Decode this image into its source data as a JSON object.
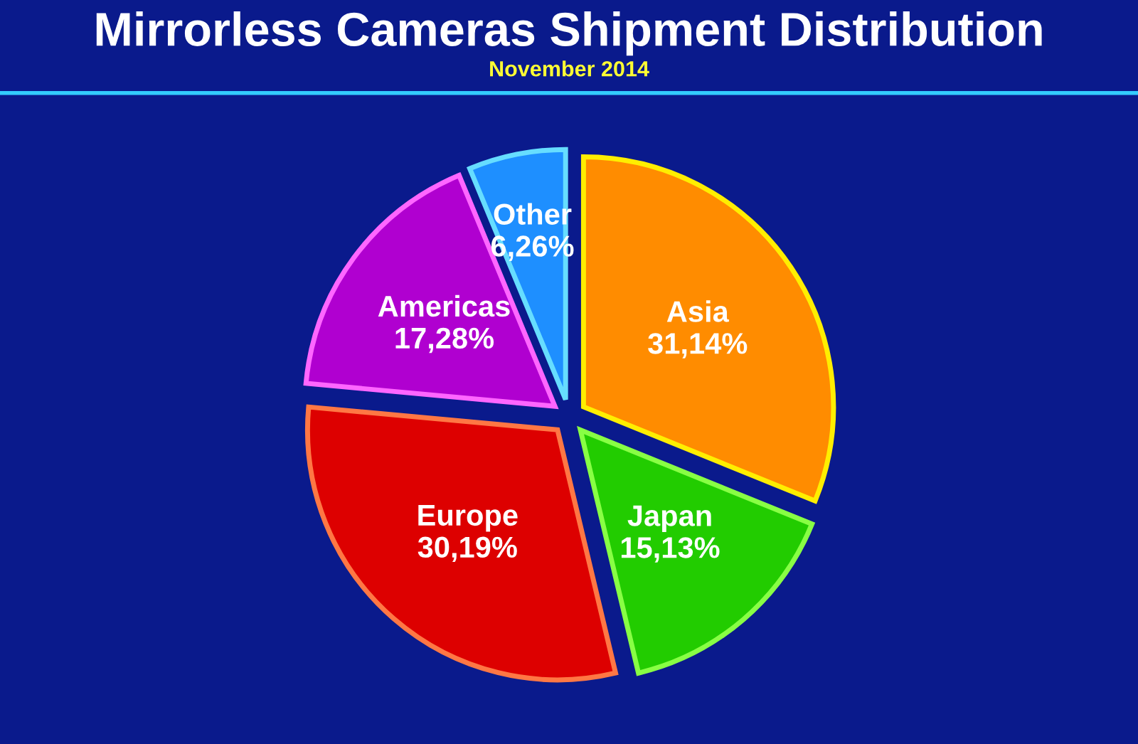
{
  "chart_data": {
    "type": "pie",
    "title": "Mirrorless Cameras Shipment Distribution",
    "subtitle": "November 2014",
    "categories": [
      "Asia",
      "Japan",
      "Europe",
      "Americas",
      "Other"
    ],
    "values": [
      31.14,
      15.13,
      30.19,
      17.28,
      6.26
    ],
    "value_labels": [
      "31,14%",
      "15,13%",
      "30,19%",
      "17,28%",
      "6,26%"
    ],
    "colors": [
      "#ff8c00",
      "#22cc00",
      "#dd0000",
      "#b000d0",
      "#1e8fff"
    ],
    "legend": false
  }
}
